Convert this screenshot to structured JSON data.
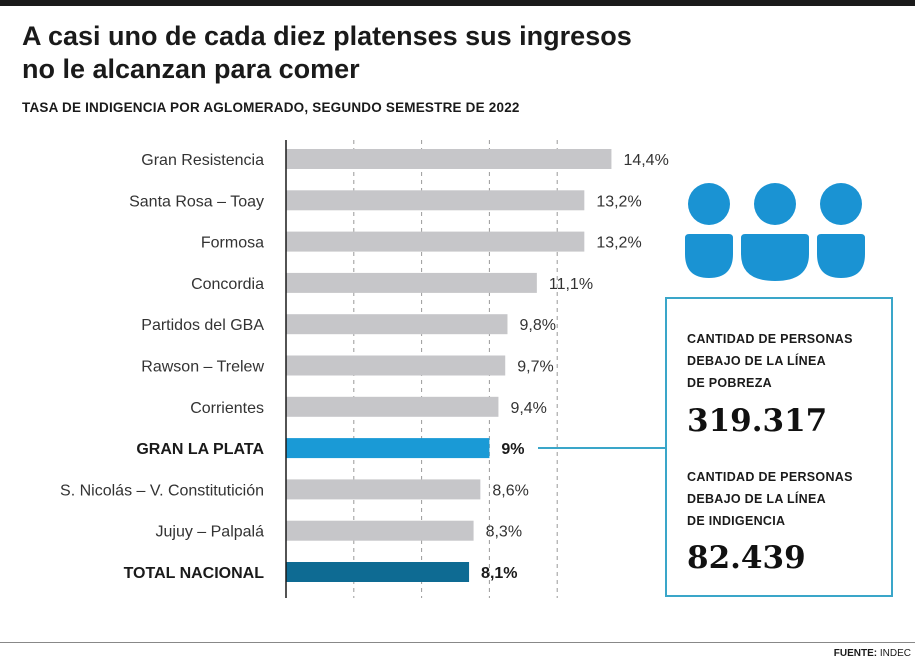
{
  "title": "A casi uno de cada diez platenses sus ingresos no le alcanzan para comer",
  "subtitle": "TASA DE INDIGENCIA POR AGLOMERADO, SEGUNDO SEMESTRE DE 2022",
  "colors": {
    "bar_default": "#c6c6c9",
    "bar_highlight": "#1a9ad6",
    "bar_national": "#0e6b93",
    "accent": "#3aa6c9",
    "icon": "#1a93d3"
  },
  "chart_data": {
    "type": "bar",
    "orientation": "horizontal",
    "title": "TASA DE INDIGENCIA POR AGLOMERADO, SEGUNDO SEMESTRE DE 2022",
    "xlabel": "",
    "ylabel": "",
    "xlim": [
      0,
      15
    ],
    "grid": true,
    "categories": [
      "Gran Resistencia",
      "Santa Rosa – Toay",
      "Formosa",
      "Concordia",
      "Partidos del GBA",
      "Rawson – Trelew",
      "Corrientes",
      "GRAN LA PLATA",
      "S. Nicolás – V. Constitutición",
      "Jujuy – Palpalá",
      "TOTAL NACIONAL"
    ],
    "values": [
      14.4,
      13.2,
      13.2,
      11.1,
      9.8,
      9.7,
      9.4,
      9.0,
      8.6,
      8.3,
      8.1
    ],
    "value_labels": [
      "14,4%",
      "13,2%",
      "13,2%",
      "11,1%",
      "9,8%",
      "9,7%",
      "9,4%",
      "9%",
      "8,6%",
      "8,3%",
      "8,1%"
    ],
    "highlight": [
      "default",
      "default",
      "default",
      "default",
      "default",
      "default",
      "default",
      "highlight",
      "default",
      "default",
      "national"
    ]
  },
  "info": {
    "icon": "people-icon",
    "poverty_label_line1": "CANTIDAD DE PERSONAS",
    "poverty_label_line2": "DEBAJO DE LA LÍNEA",
    "poverty_label_line3": "DE POBREZA",
    "poverty_value": "319.317",
    "indigence_label_line1": "CANTIDAD DE PERSONAS",
    "indigence_label_line2": "DEBAJO DE LA LÍNEA",
    "indigence_label_line3": "DE INDIGENCIA",
    "indigence_value": "82.439"
  },
  "source": {
    "label": "FUENTE:",
    "value": "INDEC"
  }
}
